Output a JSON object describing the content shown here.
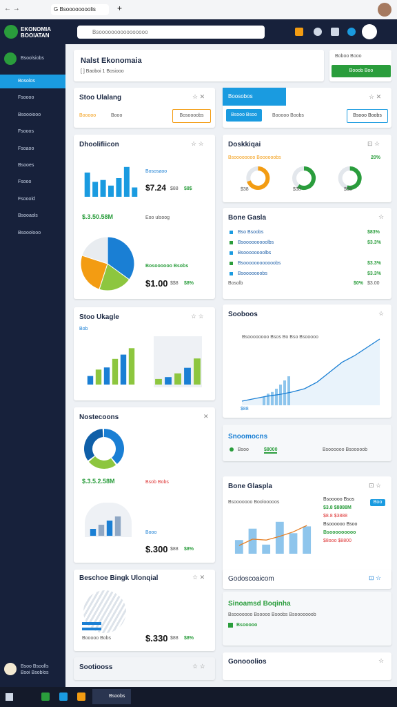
{
  "browser": {
    "tab": "G Bsoooooooolis"
  },
  "app": {
    "logo": [
      "EKONOMIA",
      "BOOIATAN"
    ],
    "search": "Bsoooooooooooooooo"
  },
  "sidebar": {
    "top": "Bsoolsiobs",
    "items": [
      "Bosolos",
      "Fsoooo",
      "Bsoooiooo",
      "Fsooos",
      "Fsoaoo",
      "Bsooes",
      "Fsooo",
      "Fsooold",
      "Bsooaols",
      "Bsooolooo"
    ],
    "user": [
      "Bsoo Bsoolls",
      "Bsoi Bsoblos"
    ]
  },
  "header": {
    "title": "Nalst Ekonomaia",
    "subtitle": "[ ] Baoboi 1 Bosiooo",
    "side_text": "Boboo Booo",
    "button": "Booob Boo"
  },
  "left": [
    {
      "title": "Stoo Ulalang",
      "items": [
        "Booooo",
        "Booo"
      ],
      "button": "Bosoooobs"
    },
    {
      "title": "Dhoolifiicon",
      "label": "Bososaoo",
      "value": "$7.24",
      "stats": [
        "$88",
        "$8$"
      ],
      "chart": {
        "type": "bar",
        "values": [
          65,
          40,
          45,
          30,
          50,
          80,
          25
        ],
        "ylim": [
          0,
          100
        ],
        "color": "#1a9be0"
      },
      "label2": "$.3.50.58M",
      "label3": "Eoo ulsoog",
      "caption": "Bosoooooo Bsobs",
      "value2": "$1.00",
      "stats2": [
        "$$8",
        "$8%"
      ],
      "chart2": {
        "type": "pie",
        "values": [
          35,
          20,
          25,
          20
        ],
        "colors": [
          "#1a7fd4",
          "#8dc63f",
          "#f39c12",
          "#e8ecf0"
        ]
      }
    },
    {
      "title": "Stoo Ukagle",
      "label": "Bob",
      "chart": {
        "type": "bar",
        "values": [
          20,
          35,
          40,
          60,
          70,
          85
        ],
        "ylim": [
          0,
          100
        ],
        "colors": [
          "#1a7fd4",
          "#8dc63f"
        ]
      },
      "chart2": {
        "type": "bar",
        "values": [
          15,
          20,
          30,
          45,
          70
        ],
        "ylim": [
          0,
          100
        ],
        "colors": [
          "#8dc63f",
          "#1a7fd4"
        ]
      }
    },
    {
      "title": "Nostecoons",
      "label": "$.3.5.2.58M",
      "label2": "Bsob Bobs",
      "caption": "Booo",
      "value": "$.300",
      "stats": [
        "$88",
        "$8%"
      ],
      "chart": {
        "type": "donut",
        "values": [
          40,
          25,
          35
        ],
        "colors": [
          "#1a7fd4",
          "#8dc63f",
          "#0f5fa8"
        ]
      },
      "chart2": {
        "type": "bar",
        "values": [
          25,
          40,
          55,
          70
        ],
        "ylim": [
          0,
          100
        ],
        "colors": [
          "#1a7fd4",
          "#8fa7c4"
        ]
      }
    },
    {
      "title": "Beschoe Bingk Ulonqial",
      "caption": "Booooo Bobs",
      "value": "$.330",
      "stats": [
        "$88",
        "$8%"
      ]
    },
    {
      "title": "Sootiooss"
    }
  ],
  "right": [
    {
      "title": "Boosobos",
      "button": "Bsooo Bsoo",
      "text": "Booooo Boobs",
      "button2": "Bsooo Boobs"
    },
    {
      "title": "Doskkiqai",
      "legend": [
        "Bsoooooooo Boooooobs",
        "20%"
      ],
      "labels": [
        "$38",
        "$38",
        "$38"
      ],
      "chart": {
        "type": "gauge",
        "values": [
          70,
          60,
          55
        ],
        "ylim": [
          0,
          100
        ],
        "colors": [
          "#f39c12",
          "#2a9d3c",
          "#2a9d3c"
        ]
      }
    },
    {
      "title": "Bone Gasla",
      "rows": [
        [
          "Bso Bsoobs",
          "$83%"
        ],
        [
          "Bsooooooooolbs",
          "$3.3%"
        ],
        [
          "Bsoooooooolbs",
          ""
        ],
        [
          "Bsoooooooooooobs",
          "$3.3%"
        ],
        [
          "Bsooooooobs",
          "$3.3%"
        ]
      ],
      "foot": [
        "Bosolb",
        "$0%",
        "$3.00"
      ]
    },
    {
      "title": "Sooboos",
      "text": "Bsoooooooo Bsos Bo Bso Bsooooo",
      "label": "$88",
      "chart": {
        "type": "line",
        "values": [
          5,
          8,
          11,
          13,
          16,
          20,
          28,
          40,
          52,
          60,
          70,
          80
        ],
        "bars": [
          10,
          14,
          16,
          20,
          25,
          30,
          35
        ],
        "ylim": [
          0,
          100
        ],
        "color": "#1a7fd4"
      }
    },
    {
      "title": "Snoomocns",
      "items": [
        "Bsoo",
        "$8000",
        "Bsoooooo Bsooooob"
      ]
    },
    {
      "title": "Bone Glaspla",
      "text": "Bsooooooo Boolooooos",
      "tag": "Boo",
      "right": [
        "Bsooooo Bsos",
        "$3.8 $8888M",
        "$8.8 $3888",
        "Bsoooooo Bsoo",
        "Bsooooooooo",
        "$8ooo $8800"
      ],
      "chart": {
        "type": "barline",
        "values": [
          30,
          55,
          20,
          70,
          45,
          60
        ],
        "line": [
          18,
          32,
          30,
          38,
          48,
          62
        ],
        "ylim": [
          0,
          100
        ],
        "color": "#8ec5ec"
      }
    },
    {
      "title": "Godoscoaicom"
    },
    {
      "title": "Sinoamsd Boqinha",
      "text": "Bsooooooo Bsoooo Bsoobs Bsooooooob",
      "item": "Bsooooo"
    },
    {
      "title": "Gonooolios"
    }
  ],
  "taskbar": {
    "app": "Bsoobs"
  }
}
